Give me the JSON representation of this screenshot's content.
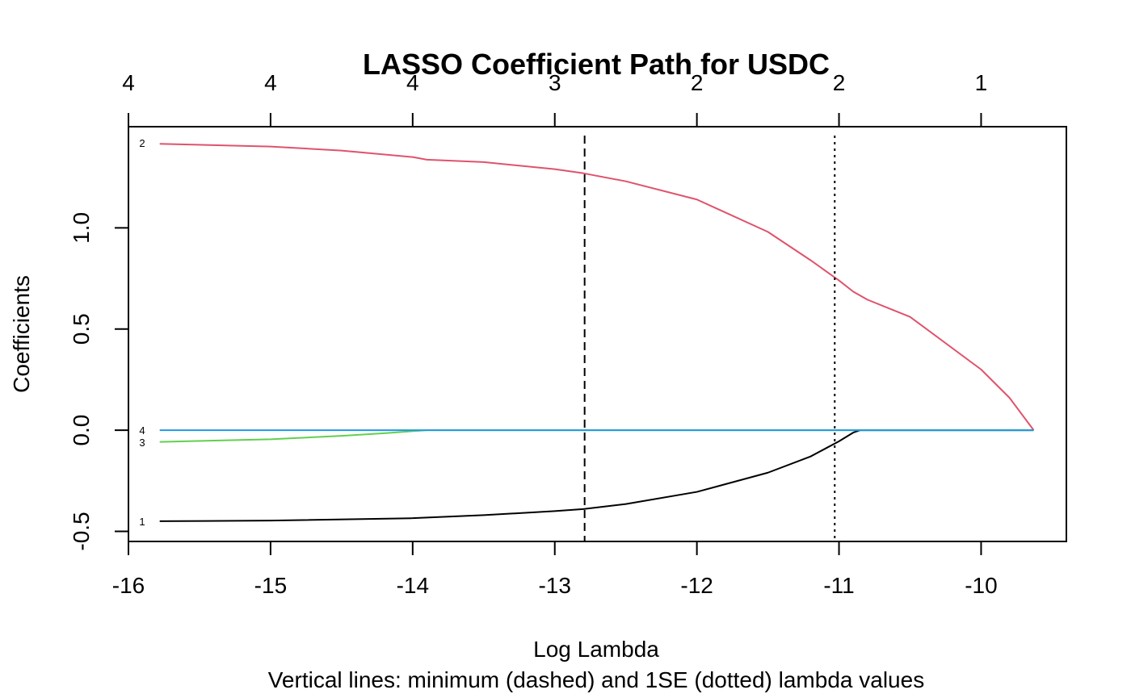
{
  "chart_data": {
    "type": "line",
    "title": "LASSO Coefficient Path for USDC",
    "xlabel": "Log Lambda",
    "ylabel": "Coefficients",
    "subtitle": "Vertical lines: minimum (dashed) and 1SE (dotted) lambda values",
    "xlim": [
      -16,
      -9.4
    ],
    "ylim": [
      -0.55,
      1.5
    ],
    "x_ticks": [
      -16,
      -15,
      -14,
      -13,
      -12,
      -11,
      -10
    ],
    "x_tick_labels": [
      "-16",
      "-15",
      "-14",
      "-13",
      "-12",
      "-11",
      "-10"
    ],
    "y_ticks": [
      -0.5,
      0.0,
      0.5,
      1.0
    ],
    "y_tick_labels": [
      "-0.5",
      "0.0",
      "0.5",
      "1.0"
    ],
    "top_axis": {
      "x_positions": [
        -16,
        -15,
        -14,
        -13,
        -12,
        -11,
        -10
      ],
      "labels": [
        "4",
        "4",
        "4",
        "3",
        "2",
        "2",
        "1"
      ]
    },
    "vlines": [
      {
        "x": -12.79,
        "style": "dashed"
      },
      {
        "x": -11.03,
        "style": "dotted"
      }
    ],
    "series": [
      {
        "name": "1",
        "color": "#000000",
        "label_y": -0.45,
        "x": [
          -15.78,
          -15.0,
          -14.0,
          -13.5,
          -13.0,
          -12.8,
          -12.5,
          -12.0,
          -11.5,
          -11.2,
          -11.0,
          -10.9,
          -10.85,
          -10.5,
          -10.0,
          -9.63
        ],
        "values": [
          -0.45,
          -0.447,
          -0.435,
          -0.42,
          -0.4,
          -0.39,
          -0.365,
          -0.305,
          -0.21,
          -0.13,
          -0.055,
          -0.012,
          0.0,
          0.0,
          0.0,
          0.0
        ]
      },
      {
        "name": "2",
        "color": "#DF536B",
        "label_y": 1.42,
        "x": [
          -15.78,
          -15.0,
          -14.5,
          -14.0,
          -13.9,
          -13.5,
          -13.0,
          -12.8,
          -12.5,
          -12.0,
          -11.5,
          -11.2,
          -11.0,
          -10.9,
          -10.8,
          -10.5,
          -10.0,
          -9.8,
          -9.63
        ],
        "values": [
          1.415,
          1.402,
          1.382,
          1.35,
          1.337,
          1.325,
          1.29,
          1.27,
          1.23,
          1.14,
          0.98,
          0.84,
          0.74,
          0.685,
          0.645,
          0.56,
          0.3,
          0.16,
          0.0
        ]
      },
      {
        "name": "3",
        "color": "#61D04F",
        "label_y": -0.06,
        "x": [
          -15.78,
          -15.0,
          -14.5,
          -14.2,
          -13.9,
          -13.0,
          -12.0,
          -11.0,
          -10.0,
          -9.63
        ],
        "values": [
          -0.058,
          -0.045,
          -0.028,
          -0.015,
          0.0,
          0.0,
          0.0,
          0.0,
          0.0,
          0.0
        ]
      },
      {
        "name": "4",
        "color": "#2297E6",
        "label_y": 0.0,
        "x": [
          -15.78,
          -9.63
        ],
        "values": [
          0.0,
          0.0
        ]
      }
    ]
  }
}
